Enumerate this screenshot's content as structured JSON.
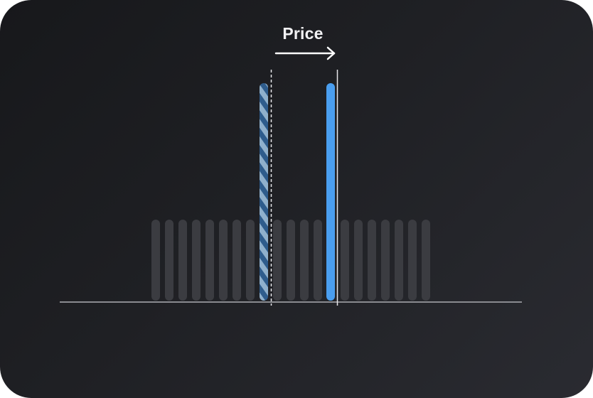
{
  "price_label": "Price",
  "colors": {
    "background": "#1d1e22",
    "bar_dim": "#3b3c41",
    "bar_current": "#4a9eef",
    "bar_previous_dark": "#2e5c8c",
    "bar_previous_light": "#8fb0cc",
    "marker_line": "#e6e6ea",
    "baseline": "#8a8b90",
    "arrow": "#ffffff"
  },
  "bars": {
    "background_count": 21,
    "previous_position_index": 8,
    "current_position_index": 13
  }
}
